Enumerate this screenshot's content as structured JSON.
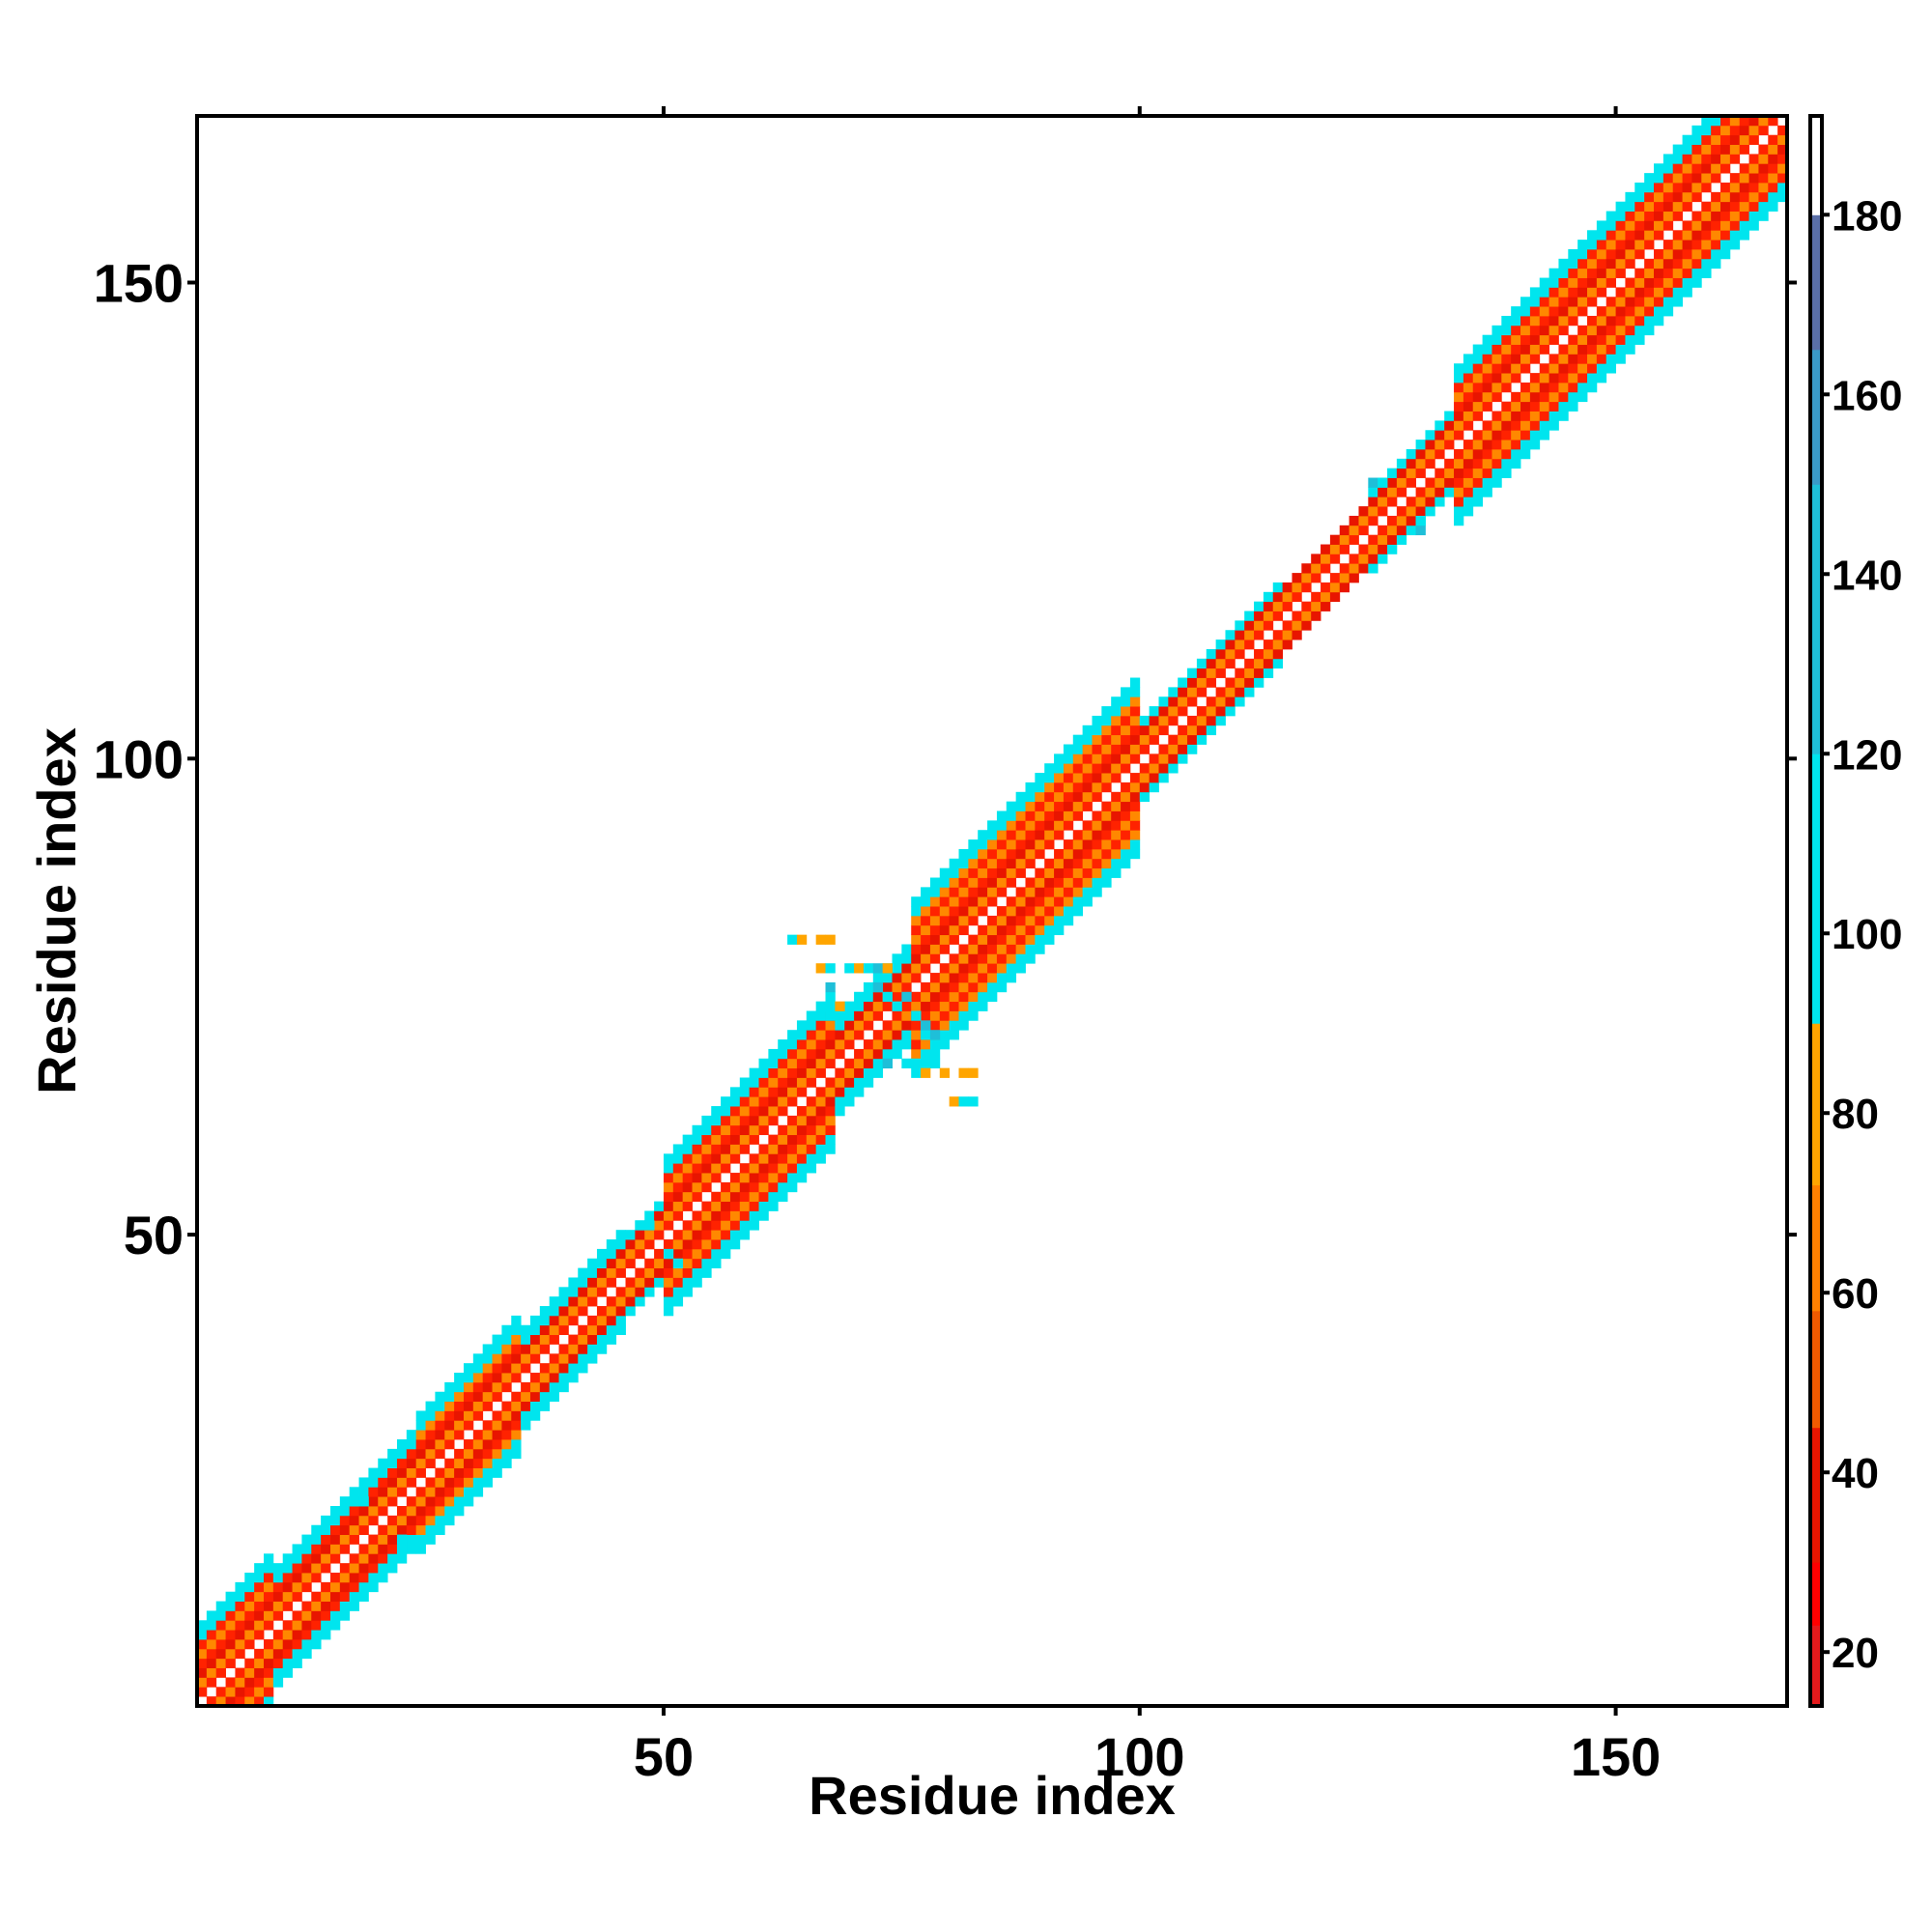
{
  "chart_data": {
    "type": "heatmap",
    "title": "",
    "xlabel": "Residue index",
    "ylabel": "Residue index",
    "xlim": [
      1,
      167
    ],
    "ylim": [
      1,
      167
    ],
    "x_ticks": [
      50,
      100,
      150
    ],
    "y_ticks": [
      50,
      100,
      150
    ],
    "grid": false,
    "background_color": "#ffffff",
    "colorbar": {
      "range": [
        14,
        191
      ],
      "ticks": [
        20,
        40,
        60,
        80,
        100,
        120,
        140,
        160,
        180
      ],
      "bins": [
        {
          "from": 14,
          "to": 23,
          "color": "#e41a1c"
        },
        {
          "from": 23,
          "to": 30,
          "color": "#ff0000"
        },
        {
          "from": 30,
          "to": 45,
          "color": "#e81500"
        },
        {
          "from": 45,
          "to": 58,
          "color": "#f05a00"
        },
        {
          "from": 58,
          "to": 72,
          "color": "#ff8000"
        },
        {
          "from": 72,
          "to": 90,
          "color": "#ffa500"
        },
        {
          "from": 90,
          "to": 120,
          "color": "#00e5ee"
        },
        {
          "from": 120,
          "to": 150,
          "color": "#1fbfd8"
        },
        {
          "from": 150,
          "to": 165,
          "color": "#3a9ac8"
        },
        {
          "from": 165,
          "to": 180,
          "color": "#5a6fa8"
        },
        {
          "from": 180,
          "to": 191,
          "color": "#ffffff"
        }
      ]
    },
    "band": {
      "description": "near-diagonal distance band",
      "core_distances": [
        0,
        1,
        2,
        3
      ],
      "core_colors": [
        "#ffffff",
        "#ff2200",
        "#ff8800",
        "#e81500"
      ],
      "edge_color": "#00e5ee"
    },
    "band_segments": [
      {
        "from": 1,
        "to": 9,
        "half_width": 8
      },
      {
        "from": 9,
        "to": 24,
        "half_width": 6
      },
      {
        "from": 24,
        "to": 35,
        "half_width": 7
      },
      {
        "from": 35,
        "to": 46,
        "half_width": 5
      },
      {
        "from": 46,
        "to": 50,
        "half_width": 4
      },
      {
        "from": 50,
        "to": 68,
        "half_width": 8
      },
      {
        "from": 68,
        "to": 76,
        "half_width": 5
      },
      {
        "from": 76,
        "to": 100,
        "half_width": 9
      },
      {
        "from": 100,
        "to": 115,
        "half_width": 4
      },
      {
        "from": 115,
        "to": 124,
        "half_width": 3
      },
      {
        "from": 124,
        "to": 133,
        "half_width": 4
      },
      {
        "from": 133,
        "to": 167,
        "half_width": 8
      }
    ],
    "off_band_cells": [
      {
        "x": 63,
        "y": 81,
        "color": "#00e5ee"
      },
      {
        "x": 64,
        "y": 81,
        "color": "#ffa500"
      },
      {
        "x": 66,
        "y": 81,
        "color": "#ffa500"
      },
      {
        "x": 67,
        "y": 81,
        "color": "#ffa500"
      },
      {
        "x": 66,
        "y": 78,
        "color": "#ffa500"
      },
      {
        "x": 67,
        "y": 78,
        "color": "#00e5ee"
      },
      {
        "x": 69,
        "y": 78,
        "color": "#00e5ee"
      },
      {
        "x": 70,
        "y": 78,
        "color": "#ffa500"
      },
      {
        "x": 71,
        "y": 78,
        "color": "#00e5ee"
      },
      {
        "x": 72,
        "y": 78,
        "color": "#1fbfd8"
      },
      {
        "x": 73,
        "y": 78,
        "color": "#ffa500"
      },
      {
        "x": 67,
        "y": 76,
        "color": "#1fbfd8"
      },
      {
        "x": 68,
        "y": 74,
        "color": "#ffa500"
      },
      {
        "x": 67,
        "y": 73,
        "color": "#00e5ee"
      },
      {
        "x": 72,
        "y": 76,
        "color": "#1fbfd8"
      },
      {
        "x": 73,
        "y": 75,
        "color": "#00e5ee"
      },
      {
        "x": 74,
        "y": 74,
        "color": "#00e5ee"
      },
      {
        "x": 75,
        "y": 75,
        "color": "#1fbfd8"
      },
      {
        "x": 76,
        "y": 73,
        "color": "#00e5ee"
      },
      {
        "x": 77,
        "y": 71,
        "color": "#00e5ee"
      },
      {
        "x": 77,
        "y": 72,
        "color": "#1fbfd8"
      },
      {
        "x": 78,
        "y": 71,
        "color": "#1fbfd8"
      },
      {
        "x": 73,
        "y": 68,
        "color": "#1fbfd8"
      },
      {
        "x": 75,
        "y": 68,
        "color": "#00e5ee"
      },
      {
        "x": 76,
        "y": 68,
        "color": "#00e5ee"
      },
      {
        "x": 78,
        "y": 68,
        "color": "#00e5ee"
      },
      {
        "x": 77,
        "y": 67,
        "color": "#ffa500"
      },
      {
        "x": 79,
        "y": 67,
        "color": "#ffa500"
      },
      {
        "x": 81,
        "y": 67,
        "color": "#ffa500"
      },
      {
        "x": 82,
        "y": 67,
        "color": "#ffa500"
      },
      {
        "x": 80,
        "y": 64,
        "color": "#ffa500"
      },
      {
        "x": 81,
        "y": 64,
        "color": "#00e5ee"
      },
      {
        "x": 82,
        "y": 64,
        "color": "#00e5ee"
      },
      {
        "x": 47,
        "y": 51,
        "color": "#00e5ee"
      },
      {
        "x": 48,
        "y": 51,
        "color": "#00e5ee"
      },
      {
        "x": 50,
        "y": 48,
        "color": "#00e5ee"
      },
      {
        "x": 51,
        "y": 47,
        "color": "#00e5ee"
      },
      {
        "x": 124,
        "y": 129,
        "color": "#1fbfd8"
      },
      {
        "x": 125,
        "y": 129,
        "color": "#00e5ee"
      },
      {
        "x": 129,
        "y": 124,
        "color": "#1fbfd8"
      },
      {
        "x": 129,
        "y": 125,
        "color": "#00e5ee"
      },
      {
        "x": 17,
        "y": 22,
        "color": "#00e5ee"
      },
      {
        "x": 18,
        "y": 22,
        "color": "#00e5ee"
      },
      {
        "x": 22,
        "y": 17,
        "color": "#00e5ee"
      },
      {
        "x": 22,
        "y": 18,
        "color": "#00e5ee"
      }
    ]
  }
}
